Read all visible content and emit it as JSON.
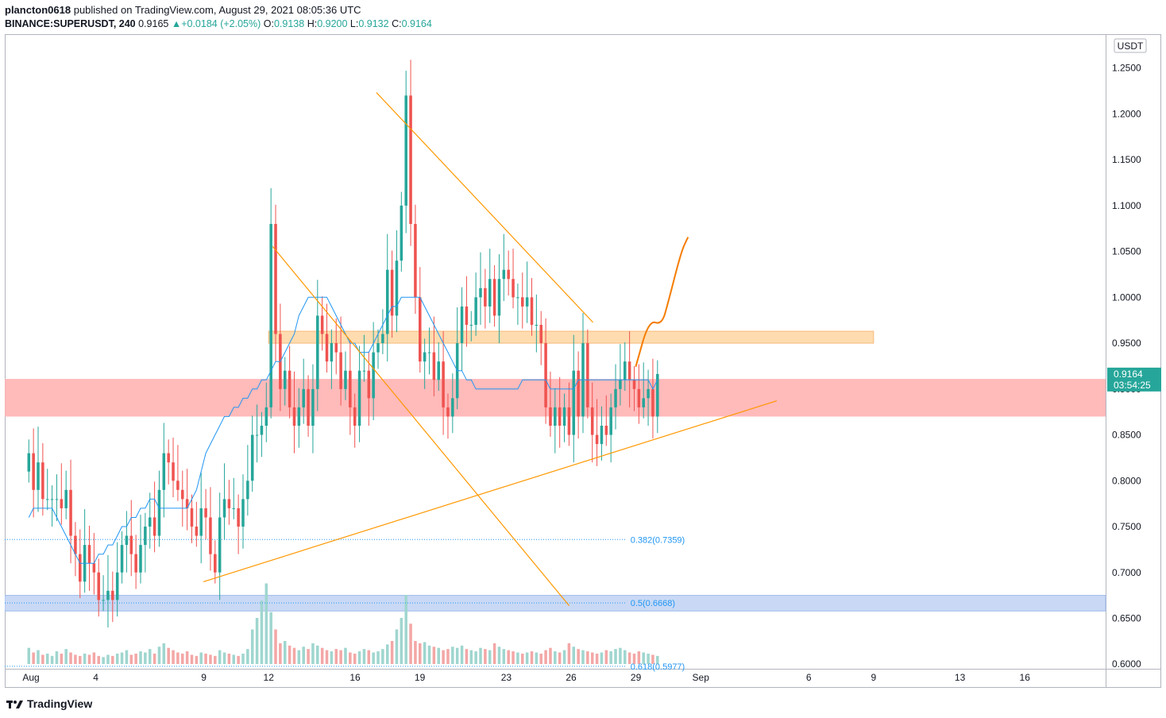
{
  "header": {
    "publisher": "plancton0618",
    "published_text": "published on TradingView.com, August 29, 2021 08:05:36 UTC",
    "symbol": "BINANCE:SUPERUSDT, 240",
    "last": "0.9165",
    "change_arrow": "▲",
    "change": "+0.0184 (+2.05%)",
    "o_label": "O:",
    "o_value": "0.9138",
    "h_label": "H:",
    "h_value": "0.9200",
    "l_label": "L:",
    "l_value": "0.9132",
    "c_label": "C:",
    "c_value": "0.9164"
  },
  "footer": {
    "brand": "TradingView",
    "logo_icon": "tradingview-logo-icon"
  },
  "colors": {
    "up": "#26a69a",
    "down": "#ef5350",
    "ma": "#2196f3",
    "trend": "#ff9800",
    "projection": "#f57c00",
    "support_zone": "#ffb3b3",
    "resistance_zone": "#ffd9a8",
    "fib_zone": "#c9d9f5",
    "fib_text": "#2196f3"
  },
  "chart_data": {
    "type": "candlestick",
    "currency_label": "USDT",
    "ylim": [
      0.595,
      1.28
    ],
    "y_ticks": [
      "1.2500",
      "1.2000",
      "1.1500",
      "1.1000",
      "1.0500",
      "1.0000",
      "0.9500",
      "0.9000",
      "0.8500",
      "0.8000",
      "0.7500",
      "0.7000",
      "0.6500",
      "0.6000"
    ],
    "x_ticks": [
      "Aug",
      "4",
      "9",
      "12",
      "16",
      "19",
      "23",
      "26",
      "29",
      "Sep",
      "6",
      "9",
      "13",
      "16"
    ],
    "x_tick_dates": [
      1,
      4,
      9,
      12,
      16,
      19,
      23,
      26,
      29,
      32,
      37,
      40,
      44,
      47
    ],
    "last_price": "0.9164",
    "countdown": "03:54:25",
    "closes": [
      0.83,
      0.79,
      0.82,
      0.78,
      0.78,
      0.78,
      0.78,
      0.77,
      0.79,
      0.74,
      0.72,
      0.69,
      0.73,
      0.71,
      0.7,
      0.67,
      0.67,
      0.68,
      0.67,
      0.7,
      0.73,
      0.74,
      0.72,
      0.7,
      0.73,
      0.75,
      0.76,
      0.74,
      0.79,
      0.83,
      0.82,
      0.8,
      0.79,
      0.78,
      0.77,
      0.75,
      0.74,
      0.77,
      0.76,
      0.72,
      0.7,
      0.76,
      0.78,
      0.77,
      0.77,
      0.75,
      0.78,
      0.8,
      0.85,
      0.85,
      0.86,
      0.88,
      1.08,
      0.96,
      0.9,
      0.92,
      0.88,
      0.86,
      0.88,
      0.9,
      0.86,
      0.9,
      0.98,
      0.96,
      0.93,
      0.95,
      0.94,
      0.9,
      0.92,
      0.88,
      0.86,
      0.92,
      0.92,
      0.89,
      0.94,
      0.95,
      0.96,
      1.03,
      0.98,
      1.04,
      1.1,
      1.22,
      1.08,
      1.0,
      0.93,
      0.94,
      0.94,
      0.91,
      0.93,
      0.88,
      0.87,
      0.89,
      0.95,
      0.99,
      0.97,
      0.97,
      1.0,
      1.01,
      0.99,
      1.02,
      0.98,
      1.02,
      1.03,
      1.02,
      1.0,
      1.0,
      0.99,
      1.0,
      0.97,
      0.97,
      0.95,
      0.88,
      0.86,
      0.88,
      0.86,
      0.88,
      0.85,
      0.92,
      0.87,
      0.95,
      0.88,
      0.85,
      0.84,
      0.86,
      0.85,
      0.88,
      0.9,
      0.91,
      0.93,
      0.91,
      0.9,
      0.88,
      0.89,
      0.9,
      0.87,
      0.9164
    ],
    "ma_values": [
      0.76,
      0.77,
      0.77,
      0.77,
      0.77,
      0.77,
      0.76,
      0.75,
      0.74,
      0.73,
      0.72,
      0.71,
      0.71,
      0.71,
      0.71,
      0.72,
      0.72,
      0.73,
      0.73,
      0.74,
      0.75,
      0.75,
      0.76,
      0.76,
      0.77,
      0.77,
      0.78,
      0.78,
      0.77,
      0.77,
      0.77,
      0.77,
      0.77,
      0.77,
      0.77,
      0.78,
      0.79,
      0.81,
      0.83,
      0.84,
      0.85,
      0.86,
      0.87,
      0.87,
      0.88,
      0.88,
      0.89,
      0.89,
      0.9,
      0.9,
      0.91,
      0.91,
      0.92,
      0.93,
      0.93,
      0.94,
      0.95,
      0.96,
      0.98,
      0.99,
      1.0,
      1.0,
      1.0,
      1.0,
      1.0,
      0.99,
      0.98,
      0.97,
      0.96,
      0.95,
      0.95,
      0.94,
      0.94,
      0.94,
      0.95,
      0.96,
      0.97,
      0.98,
      0.99,
      0.99,
      1.0,
      1.0,
      1.0,
      1.0,
      1.0,
      0.99,
      0.98,
      0.97,
      0.96,
      0.95,
      0.94,
      0.93,
      0.92,
      0.92,
      0.91,
      0.91,
      0.9,
      0.9,
      0.9,
      0.9,
      0.9,
      0.9,
      0.9,
      0.9,
      0.9,
      0.9,
      0.91,
      0.91,
      0.91,
      0.91,
      0.91,
      0.91,
      0.9,
      0.9,
      0.9,
      0.9,
      0.9,
      0.9,
      0.91,
      0.91,
      0.91,
      0.91,
      0.91,
      0.91,
      0.91,
      0.91,
      0.91,
      0.91,
      0.91,
      0.91,
      0.91,
      0.91,
      0.91,
      0.91,
      0.9,
      0.91
    ],
    "volumes": [
      14,
      10,
      12,
      8,
      9,
      7,
      11,
      9,
      13,
      10,
      8,
      7,
      9,
      8,
      10,
      7,
      6,
      8,
      7,
      9,
      10,
      12,
      8,
      9,
      11,
      10,
      13,
      9,
      15,
      18,
      14,
      12,
      10,
      9,
      11,
      8,
      7,
      10,
      9,
      8,
      7,
      12,
      10,
      9,
      8,
      7,
      9,
      13,
      30,
      40,
      55,
      70,
      45,
      30,
      18,
      20,
      16,
      14,
      12,
      15,
      13,
      18,
      16,
      14,
      12,
      11,
      13,
      12,
      14,
      10,
      9,
      11,
      13,
      12,
      10,
      11,
      13,
      17,
      20,
      30,
      40,
      60,
      35,
      20,
      18,
      19,
      16,
      15,
      14,
      12,
      13,
      15,
      14,
      16,
      13,
      12,
      11,
      14,
      13,
      12,
      18,
      15,
      13,
      12,
      11,
      10,
      9,
      10,
      11,
      10,
      9,
      12,
      14,
      11,
      10,
      12,
      18,
      15,
      13,
      12,
      11,
      10,
      9,
      10,
      12,
      11,
      13,
      14,
      12,
      10,
      9,
      11,
      10,
      9,
      8,
      7
    ],
    "levels": {
      "support_zone": [
        0.87,
        0.911
      ],
      "resistance_zone": [
        0.95,
        0.963
      ],
      "fib_zone": [
        0.658,
        0.675
      ]
    },
    "fib_labels": [
      {
        "text": "0.382(0.7359)",
        "value": 0.7359
      },
      {
        "text": "0.5(0.6668)",
        "value": 0.6668
      },
      {
        "text": "0.618(0.5977)",
        "value": 0.5977
      }
    ],
    "annotations": {
      "descending_channel_upper": [
        [
          17.0,
          1.223
        ],
        [
          27.0,
          0.973
        ]
      ],
      "descending_channel_lower": [
        [
          12.2,
          1.055
        ],
        [
          25.9,
          0.664
        ]
      ],
      "ascending_trend": [
        [
          9.0,
          0.69
        ],
        [
          35.5,
          0.887
        ]
      ],
      "breakout_projection": [
        [
          29.0,
          0.925
        ],
        [
          29.6,
          0.975
        ],
        [
          30.2,
          0.97
        ],
        [
          30.5,
          0.995
        ],
        [
          31.1,
          1.05
        ],
        [
          31.4,
          1.065
        ]
      ]
    }
  }
}
